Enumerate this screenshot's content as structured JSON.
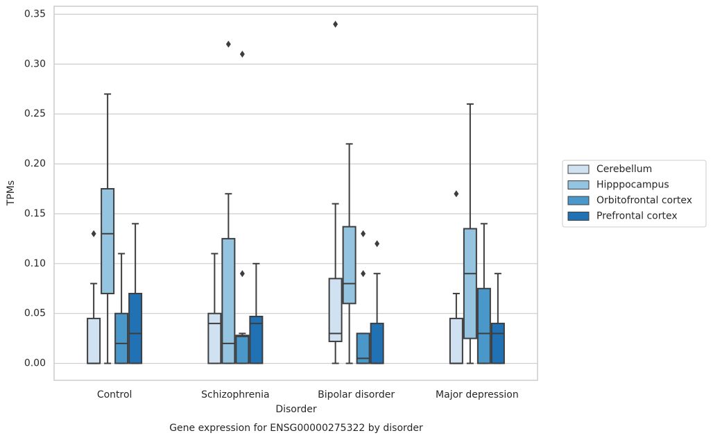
{
  "chart_data": {
    "type": "box",
    "title": "Gene expression for ENSG00000275322 by disorder",
    "xlabel": "Disorder",
    "ylabel": "TPMs",
    "categories": [
      "Control",
      "Schizophrenia",
      "Bipolar disorder",
      "Major depression"
    ],
    "ylim": [
      -0.017,
      0.358
    ],
    "yticks": [
      {
        "value": 0,
        "label": "0.00"
      },
      0.05,
      {
        "value": 0.1,
        "label": "0.10"
      },
      0.15,
      {
        "value": 0.2,
        "label": "0.20"
      },
      0.25,
      {
        "value": 0.3,
        "label": "0.30"
      },
      0.35
    ],
    "grid": true,
    "legend": "right",
    "series": [
      {
        "name": "Cerebellum",
        "color": "#d0e1f2",
        "values": [
          {
            "min": 0,
            "q1": 0,
            "median": 0,
            "q3": 0.045,
            "max": 0.08,
            "outliers": [
              0.13
            ]
          },
          {
            "min": 0,
            "q1": 0,
            "median": 0.04,
            "q3": 0.05,
            "max": 0.11,
            "outliers": []
          },
          {
            "min": 0,
            "q1": 0.022,
            "median": 0.03,
            "q3": 0.085,
            "max": 0.16,
            "outliers": [
              0.34
            ]
          },
          {
            "min": 0,
            "q1": 0,
            "median": 0,
            "q3": 0.045,
            "max": 0.07,
            "outliers": [
              0.17
            ]
          }
        ]
      },
      {
        "name": "Hipppocampus",
        "color": "#94c4df",
        "values": [
          {
            "min": 0,
            "q1": 0.07,
            "median": 0.13,
            "q3": 0.175,
            "max": 0.27,
            "outliers": []
          },
          {
            "min": 0,
            "q1": 0,
            "median": 0.02,
            "q3": 0.125,
            "max": 0.17,
            "outliers": [
              0.32
            ]
          },
          {
            "min": 0,
            "q1": 0.06,
            "median": 0.08,
            "q3": 0.137,
            "max": 0.22,
            "outliers": []
          },
          {
            "min": 0,
            "q1": 0.025,
            "median": 0.09,
            "q3": 0.135,
            "max": 0.26,
            "outliers": []
          }
        ]
      },
      {
        "name": "Orbitofrontal cortex",
        "color": "#4a98c9",
        "values": [
          {
            "min": 0,
            "q1": 0,
            "median": 0.02,
            "q3": 0.05,
            "max": 0.11,
            "outliers": []
          },
          {
            "min": 0,
            "q1": 0,
            "median": 0.027,
            "q3": 0.028,
            "max": 0.03,
            "outliers": [
              0.09,
              0.31
            ]
          },
          {
            "min": 0,
            "q1": 0,
            "median": 0.005,
            "q3": 0.03,
            "max": 0.03,
            "outliers": [
              0.09,
              0.13
            ]
          },
          {
            "min": 0,
            "q1": 0,
            "median": 0.03,
            "q3": 0.075,
            "max": 0.14,
            "outliers": []
          }
        ]
      },
      {
        "name": "Prefrontal cortex",
        "color": "#2171b5",
        "values": [
          {
            "min": 0,
            "q1": 0,
            "median": 0.03,
            "q3": 0.07,
            "max": 0.14,
            "outliers": []
          },
          {
            "min": 0,
            "q1": 0,
            "median": 0.04,
            "q3": 0.047,
            "max": 0.1,
            "outliers": []
          },
          {
            "min": 0,
            "q1": 0,
            "median": 0,
            "q3": 0.04,
            "max": 0.09,
            "outliers": [
              0.12
            ]
          },
          {
            "min": 0,
            "q1": 0,
            "median": 0.03,
            "q3": 0.04,
            "max": 0.09,
            "outliers": []
          }
        ]
      }
    ]
  }
}
